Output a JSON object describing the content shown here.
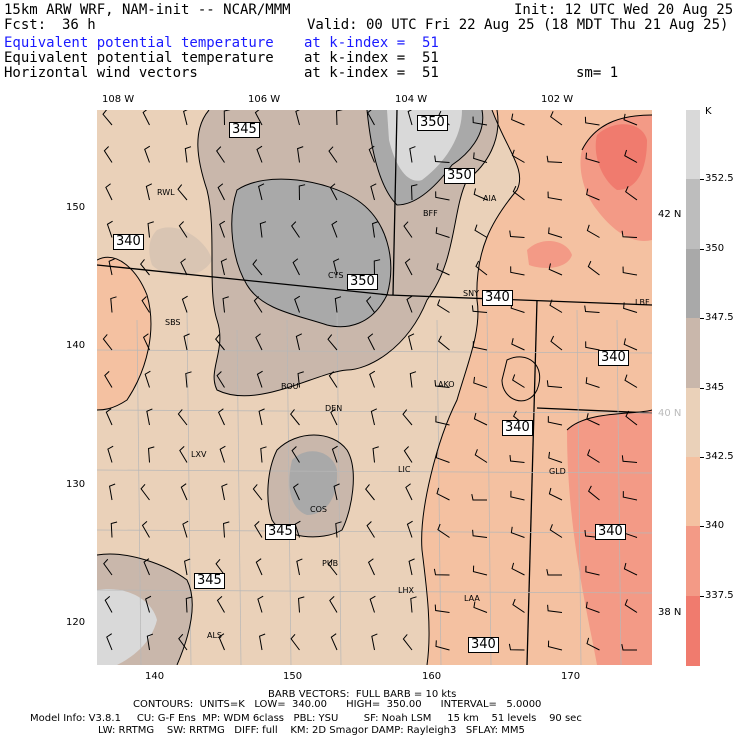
{
  "header": {
    "title": "15km ARW WRF, NAM-init -- NCAR/MMM",
    "init": "Init: 12 UTC Wed 20 Aug 25",
    "fcst_label": "Fcst:",
    "fcst_value": "36 h",
    "valid": "Valid: 00 UTC Fri 22 Aug 25 (18 MDT Thu 21 Aug 25)"
  },
  "fields": [
    {
      "name": "Equivalent potential temperature",
      "level": "at k-index =  51",
      "extra": ""
    },
    {
      "name": "Equivalent potential temperature",
      "level": "at k-index =  51",
      "extra": ""
    },
    {
      "name": "Horizontal wind vectors",
      "level": "at k-index =  51",
      "extra": "sm= 1"
    }
  ],
  "top_lon_labels": [
    "108 W",
    "106 W",
    "104 W",
    "102 W"
  ],
  "left_y_labels": [
    "150",
    "140",
    "130",
    "120"
  ],
  "bottom_x_labels": [
    "140",
    "150",
    "160",
    "170"
  ],
  "right_lat_labels": [
    "42 N",
    "40 N",
    "38 N"
  ],
  "stations": [
    "RWL",
    "BFF",
    "AIA",
    "CYS",
    "SNY",
    "LBF",
    "SBS",
    "BOU",
    "AKO",
    "DEN",
    "LXV",
    "LIC",
    "GLD",
    "COS",
    "PUB",
    "LHX",
    "LAA",
    "ALS"
  ],
  "contour_labels": [
    "345",
    "350",
    "350",
    "340",
    "350",
    "340",
    "340",
    "340",
    "345",
    "340",
    "345",
    "340"
  ],
  "colorbar": {
    "unit": "K",
    "labels": [
      "352.5",
      "350",
      "347.5",
      "345",
      "342.5",
      "340",
      "337.5"
    ],
    "colors": [
      "#d9d9d9",
      "#bdbdbd",
      "#a9a9a9",
      "#c9b7ab",
      "#ead1b9",
      "#f4c1a1",
      "#f39a86",
      "#f07b6e"
    ]
  },
  "footer": {
    "barb": "BARB VECTORS:  FULL BARB = 10 kts",
    "contours": "CONTOURS:  UNITS=K   LOW=  340.00      HIGH=  350.00      INTERVAL=   5.0000",
    "model1": "Model Info: V3.8.1     CU: G-F Ens  MP: WDM 6class   PBL: YSU        SF: Noah LSM     15 km    51 levels    90 sec",
    "model2": "LW: RRTMG    SW: RRTMG   DIFF: full    KM: 2D Smagor DAMP: Rayleigh3   SFLAY: MM5"
  }
}
